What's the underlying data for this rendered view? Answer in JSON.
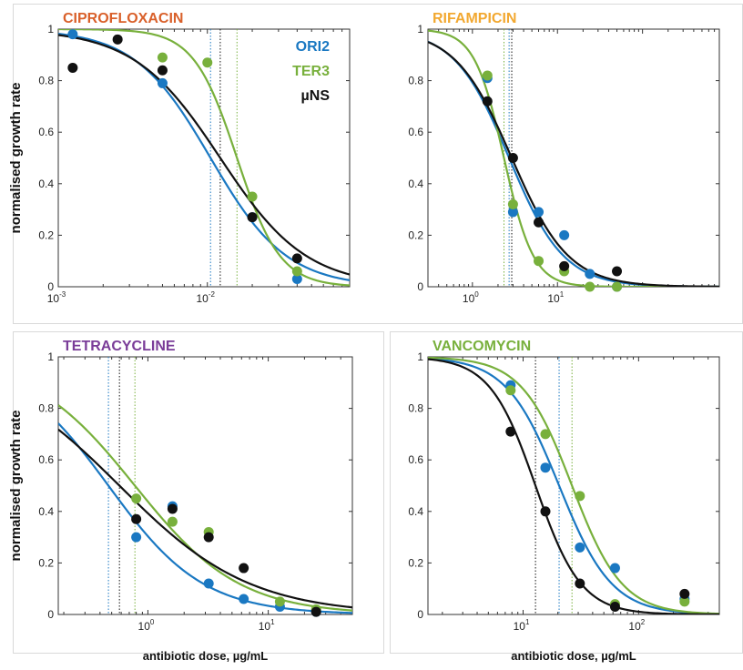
{
  "chart_data": [
    {
      "type": "line",
      "title": "CIPROFLOXACIN",
      "title_color": "#d9602a",
      "ylabel": "normalised growth rate",
      "xlabel": "",
      "xscale": "log",
      "xlim": [
        0.001,
        0.09
      ],
      "ylim": [
        0,
        1
      ],
      "xticks": [
        {
          "v": 0.001,
          "base": "10",
          "exp": "-3"
        },
        {
          "v": 0.01,
          "base": "10",
          "exp": "-2"
        }
      ],
      "yticks": [
        "0",
        "0.2",
        "0.4",
        "0.6",
        "0.8",
        "1"
      ],
      "legend_position": "top-right",
      "series": [
        {
          "name": "ORI2",
          "color": "#1a78c2",
          "ic50": 0.0105,
          "hill": 1.7,
          "points": [
            [
              0.00125,
              0.98
            ],
            [
              0.005,
              0.79
            ],
            [
              0.02,
              0.27
            ],
            [
              0.04,
              0.03
            ]
          ]
        },
        {
          "name": "TER3",
          "color": "#78b03c",
          "ic50": 0.0158,
          "hill": 3.0,
          "points": [
            [
              0.005,
              0.89
            ],
            [
              0.01,
              0.87
            ],
            [
              0.02,
              0.35
            ],
            [
              0.04,
              0.06
            ]
          ]
        },
        {
          "name": "µNS",
          "color": "#111111",
          "ic50": 0.0122,
          "hill": 1.5,
          "points": [
            [
              0.00125,
              0.85
            ],
            [
              0.0025,
              0.96
            ],
            [
              0.005,
              0.84
            ],
            [
              0.02,
              0.27
            ],
            [
              0.04,
              0.11
            ]
          ]
        }
      ]
    },
    {
      "type": "line",
      "title": "RIFAMPICIN",
      "title_color": "#f2a830",
      "ylabel": "",
      "xlabel": "",
      "xscale": "log",
      "xlim": [
        0.3,
        800
      ],
      "ylim": [
        0,
        1
      ],
      "xticks": [
        {
          "v": 1,
          "base": "10",
          "exp": "0"
        },
        {
          "v": 10,
          "base": "10",
          "exp": "1"
        }
      ],
      "yticks": [
        "0",
        "0.2",
        "0.4",
        "0.6",
        "0.8",
        "1"
      ],
      "legend_position": "",
      "series": [
        {
          "name": "ORI2",
          "color": "#1a78c2",
          "ic50": 2.7,
          "hill": 1.35,
          "points": [
            [
              1.5,
              0.81
            ],
            [
              3,
              0.29
            ],
            [
              6,
              0.29
            ],
            [
              12,
              0.2
            ],
            [
              24,
              0.05
            ],
            [
              50,
              0.0
            ]
          ]
        },
        {
          "name": "TER3",
          "color": "#78b03c",
          "ic50": 2.35,
          "hill": 2.5,
          "points": [
            [
              1.5,
              0.82
            ],
            [
              3,
              0.32
            ],
            [
              6,
              0.1
            ],
            [
              12,
              0.06
            ],
            [
              24,
              0.0
            ],
            [
              50,
              0.0
            ]
          ]
        },
        {
          "name": "µNS",
          "color": "#111111",
          "ic50": 2.9,
          "hill": 1.3,
          "points": [
            [
              1.5,
              0.72
            ],
            [
              3,
              0.5
            ],
            [
              6,
              0.25
            ],
            [
              12,
              0.08
            ],
            [
              50,
              0.06
            ]
          ]
        }
      ]
    },
    {
      "type": "line",
      "title": "TETRACYCLINE",
      "title_color": "#7a3c98",
      "ylabel": "normalised growth rate",
      "xlabel": "antibiotic dose, µg/mL",
      "xscale": "log",
      "xlim": [
        0.18,
        50
      ],
      "ylim": [
        0,
        1
      ],
      "xticks": [
        {
          "v": 1,
          "base": "10",
          "exp": "0"
        },
        {
          "v": 10,
          "base": "10",
          "exp": "1"
        }
      ],
      "yticks": [
        "0",
        "0.2",
        "0.4",
        "0.6",
        "0.8",
        "1"
      ],
      "legend_position": "",
      "series": [
        {
          "name": "ORI2",
          "color": "#1a78c2",
          "ic50": 0.47,
          "hill": 1.1,
          "points": [
            [
              0.8,
              0.3
            ],
            [
              1.6,
              0.42
            ],
            [
              3.2,
              0.12
            ],
            [
              6.25,
              0.06
            ],
            [
              12.5,
              0.03
            ],
            [
              25,
              0.01
            ]
          ]
        },
        {
          "name": "TER3",
          "color": "#78b03c",
          "ic50": 0.78,
          "hill": 1.0,
          "points": [
            [
              0.8,
              0.45
            ],
            [
              1.6,
              0.36
            ],
            [
              3.2,
              0.32
            ],
            [
              12.5,
              0.05
            ],
            [
              25,
              0.02
            ]
          ]
        },
        {
          "name": "µNS",
          "color": "#111111",
          "ic50": 0.58,
          "hill": 0.8,
          "points": [
            [
              0.8,
              0.37
            ],
            [
              1.6,
              0.41
            ],
            [
              3.2,
              0.3
            ],
            [
              6.25,
              0.18
            ],
            [
              25,
              0.01
            ]
          ]
        }
      ]
    },
    {
      "type": "line",
      "title": "VANCOMYCIN",
      "title_color": "#78b03c",
      "ylabel": "",
      "xlabel": "antibiotic dose, µg/mL",
      "xscale": "log",
      "xlim": [
        1.5,
        500
      ],
      "ylim": [
        0,
        1
      ],
      "xticks": [
        {
          "v": 10,
          "base": "10",
          "exp": "1"
        },
        {
          "v": 100,
          "base": "10",
          "exp": "2"
        }
      ],
      "yticks": [
        "0",
        "0.2",
        "0.4",
        "0.6",
        "0.8",
        "1"
      ],
      "legend_position": "",
      "series": [
        {
          "name": "ORI2",
          "color": "#1a78c2",
          "ic50": 20.5,
          "hill": 1.9,
          "points": [
            [
              7.8,
              0.89
            ],
            [
              15.6,
              0.57
            ],
            [
              31,
              0.26
            ],
            [
              62.5,
              0.18
            ],
            [
              250,
              0.06
            ]
          ]
        },
        {
          "name": "TER3",
          "color": "#78b03c",
          "ic50": 26.5,
          "hill": 2.0,
          "points": [
            [
              7.8,
              0.87
            ],
            [
              15.6,
              0.7
            ],
            [
              31,
              0.46
            ],
            [
              62.5,
              0.04
            ],
            [
              250,
              0.05
            ]
          ]
        },
        {
          "name": "µNS",
          "color": "#111111",
          "ic50": 12.8,
          "hill": 2.2,
          "points": [
            [
              7.8,
              0.71
            ],
            [
              15.6,
              0.4
            ],
            [
              31,
              0.12
            ],
            [
              62.5,
              0.03
            ],
            [
              250,
              0.08
            ]
          ]
        }
      ]
    }
  ]
}
